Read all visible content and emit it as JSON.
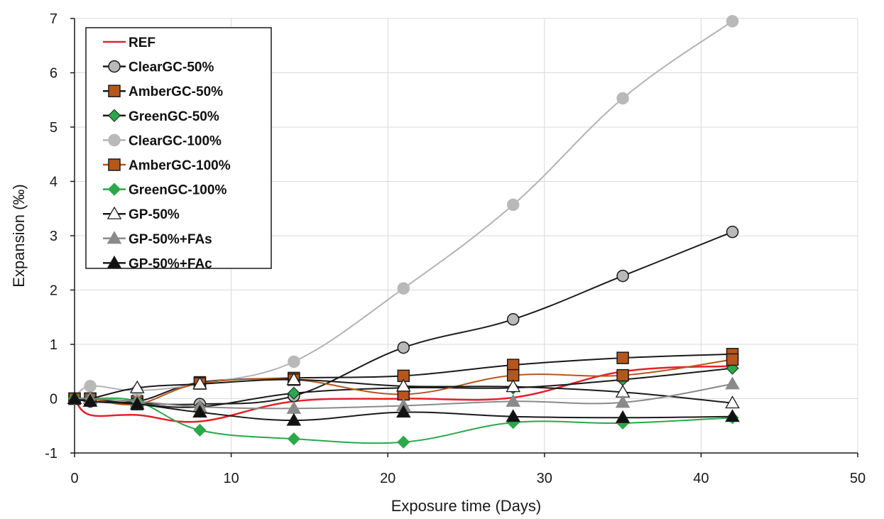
{
  "chart_data": {
    "type": "line",
    "title": "",
    "xlabel": "Exposure time (Days)",
    "ylabel": "Expansion (‰)",
    "xlim": [
      0,
      50
    ],
    "ylim": [
      -1,
      7
    ],
    "x_ticks": [
      "0",
      "10",
      "20",
      "30",
      "40",
      "50"
    ],
    "y_ticks": [
      "-1",
      "0",
      "1",
      "2",
      "3",
      "4",
      "5",
      "6",
      "7"
    ],
    "grid": true,
    "legend_position": "top-left",
    "series": [
      {
        "name": "REF",
        "color": "#e8202a",
        "marker": "none",
        "fill": "none",
        "x": [
          0,
          1,
          4,
          8,
          14,
          21,
          28,
          35,
          42
        ],
        "y": [
          0,
          -0.3,
          -0.3,
          -0.42,
          -0.05,
          0,
          0.02,
          0.5,
          0.6
        ]
      },
      {
        "name": "ClearGC-50%",
        "color": "#1a1a1a",
        "marker": "circle",
        "fill": "#b9b9b9",
        "x": [
          0,
          1,
          4,
          8,
          14,
          21,
          28,
          35,
          42
        ],
        "y": [
          0,
          -0.05,
          -0.08,
          -0.1,
          0.05,
          0.94,
          1.46,
          2.26,
          3.07
        ]
      },
      {
        "name": "AmberGC-50%",
        "color": "#1a1a1a",
        "marker": "square",
        "fill": "#b5561d",
        "x": [
          0,
          1,
          4,
          8,
          14,
          21,
          28,
          35,
          42
        ],
        "y": [
          0,
          0,
          -0.05,
          0.3,
          0.38,
          0.42,
          0.62,
          0.75,
          0.82
        ]
      },
      {
        "name": "GreenGC-50%",
        "color": "#1a1a1a",
        "marker": "diamond",
        "fill": "#2aa84a",
        "x": [
          0,
          1,
          4,
          8,
          14,
          21,
          28,
          35,
          42
        ],
        "y": [
          0,
          -0.05,
          -0.1,
          -0.15,
          0.1,
          0.2,
          0.2,
          0.35,
          0.56
        ]
      },
      {
        "name": "ClearGC-100%",
        "color": "#b3b3b3",
        "marker": "circle",
        "fill": "#b9b9b9",
        "x": [
          0,
          1,
          4,
          8,
          14,
          21,
          28,
          35,
          42
        ],
        "y": [
          0,
          0.23,
          0.15,
          0.28,
          0.68,
          2.03,
          3.57,
          5.53,
          6.95
        ]
      },
      {
        "name": "AmberGC-100%",
        "color": "#b5561d",
        "marker": "square",
        "fill": "#b5561d",
        "x": [
          0,
          1,
          4,
          8,
          14,
          21,
          28,
          35,
          42
        ],
        "y": [
          0,
          0,
          -0.1,
          0.28,
          0.35,
          0.08,
          0.43,
          0.43,
          0.72
        ]
      },
      {
        "name": "GreenGC-100%",
        "color": "#2aa84a",
        "marker": "diamond",
        "fill": "#2aa84a",
        "x": [
          0,
          1,
          4,
          8,
          14,
          21,
          28,
          35,
          42
        ],
        "y": [
          0,
          0,
          -0.05,
          -0.58,
          -0.74,
          -0.8,
          -0.44,
          -0.45,
          -0.35
        ]
      },
      {
        "name": "GP-50%",
        "color": "#1a1a1a",
        "marker": "triangle",
        "fill": "#ffffff",
        "x": [
          0,
          1,
          4,
          8,
          14,
          21,
          28,
          35,
          42
        ],
        "y": [
          0,
          0,
          0.2,
          0.27,
          0.35,
          0.23,
          0.22,
          0.12,
          -0.08
        ]
      },
      {
        "name": "GP-50%+FAs",
        "color": "#8a8a8a",
        "marker": "triangle",
        "fill": "#8a8a8a",
        "x": [
          0,
          1,
          4,
          8,
          14,
          21,
          28,
          35,
          42
        ],
        "y": [
          0,
          0,
          -0.05,
          -0.15,
          -0.18,
          -0.13,
          -0.05,
          -0.07,
          0.27
        ]
      },
      {
        "name": "GP-50%+FAc",
        "color": "#1a1a1a",
        "marker": "triangle",
        "fill": "#111111",
        "x": [
          0,
          1,
          4,
          8,
          14,
          21,
          28,
          35,
          42
        ],
        "y": [
          0,
          -0.05,
          -0.1,
          -0.25,
          -0.4,
          -0.25,
          -0.33,
          -0.35,
          -0.33
        ]
      }
    ]
  }
}
